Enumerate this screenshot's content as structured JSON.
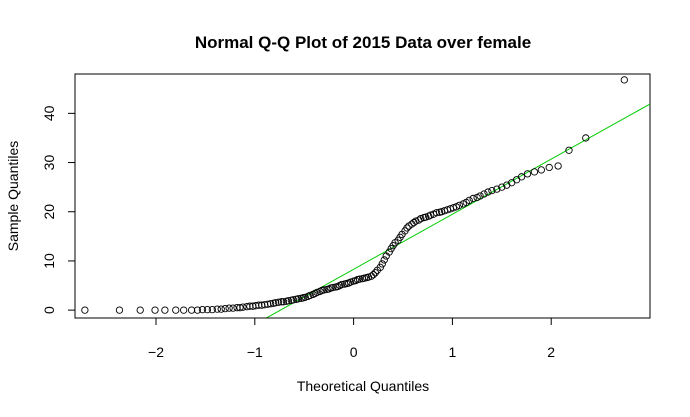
{
  "chart_data": {
    "type": "scatter",
    "title": "Normal Q-Q Plot of 2015 Data over female",
    "xlabel": "Theoretical Quantiles",
    "ylabel": "Sample Quantiles",
    "xlim": [
      -2.82,
      3.0
    ],
    "ylim": [
      -1.6,
      48.0
    ],
    "xticks": [
      -2,
      -1,
      0,
      1,
      2
    ],
    "yticks": [
      0,
      10,
      20,
      30,
      40
    ],
    "grid": false,
    "marker": "open-circle",
    "point_color": "#000000",
    "reference_line": {
      "color": "#00cc00",
      "intercept": 8.3,
      "slope": 11.2
    },
    "points": {
      "x": [
        -2.72,
        -2.37,
        -2.16,
        -2.01,
        -1.91,
        -1.8,
        -1.72,
        -1.64,
        -1.58,
        -1.53,
        -1.48,
        -1.43,
        -1.38,
        -1.34,
        -1.3,
        -1.26,
        -1.22,
        -1.18,
        -1.15,
        -1.12,
        -1.08,
        -1.05,
        -1.02,
        -0.99,
        -0.96,
        -0.93,
        -0.9,
        -0.87,
        -0.84,
        -0.81,
        -0.79,
        -0.76,
        -0.73,
        -0.71,
        -0.68,
        -0.66,
        -0.63,
        -0.61,
        -0.58,
        -0.56,
        -0.53,
        -0.51,
        -0.49,
        -0.46,
        -0.44,
        -0.41,
        -0.39,
        -0.37,
        -0.34,
        -0.32,
        -0.3,
        -0.27,
        -0.25,
        -0.23,
        -0.21,
        -0.18,
        -0.16,
        -0.14,
        -0.12,
        -0.09,
        -0.07,
        -0.05,
        -0.03,
        0.0,
        0.02,
        0.04,
        0.06,
        0.09,
        0.11,
        0.13,
        0.15,
        0.18,
        0.2,
        0.22,
        0.24,
        0.27,
        0.29,
        0.31,
        0.33,
        0.36,
        0.38,
        0.4,
        0.42,
        0.45,
        0.47,
        0.49,
        0.52,
        0.54,
        0.56,
        0.59,
        0.61,
        0.63,
        0.66,
        0.68,
        0.71,
        0.73,
        0.76,
        0.78,
        0.81,
        0.84,
        0.87,
        0.89,
        0.92,
        0.95,
        0.98,
        1.01,
        1.04,
        1.07,
        1.11,
        1.14,
        1.17,
        1.21,
        1.25,
        1.28,
        1.32,
        1.36,
        1.4,
        1.45,
        1.5,
        1.55,
        1.6,
        1.65,
        1.7,
        1.76,
        1.83,
        1.9,
        1.98,
        2.07,
        2.18,
        2.35,
        2.74
      ],
      "y": [
        0.0,
        0.0,
        0.0,
        0.0,
        0.0,
        0.0,
        0.0,
        0.0,
        0.0,
        0.1,
        0.1,
        0.1,
        0.2,
        0.2,
        0.3,
        0.4,
        0.4,
        0.5,
        0.5,
        0.6,
        0.7,
        0.8,
        0.8,
        0.9,
        1.0,
        1.0,
        1.1,
        1.2,
        1.3,
        1.4,
        1.5,
        1.6,
        1.7,
        1.7,
        1.8,
        1.9,
        2.0,
        2.1,
        2.2,
        2.3,
        2.4,
        2.5,
        2.6,
        2.8,
        3.0,
        3.2,
        3.4,
        3.6,
        3.8,
        4.0,
        4.1,
        4.2,
        4.3,
        4.5,
        4.6,
        4.7,
        4.8,
        5.0,
        5.2,
        5.3,
        5.4,
        5.5,
        5.7,
        5.9,
        6.0,
        6.2,
        6.3,
        6.4,
        6.5,
        6.6,
        6.7,
        6.9,
        7.2,
        7.6,
        8.1,
        8.7,
        9.4,
        10.2,
        11.0,
        11.8,
        12.5,
        13.1,
        13.7,
        14.2,
        14.8,
        15.4,
        16.1,
        16.7,
        17.1,
        17.5,
        17.8,
        18.1,
        18.3,
        18.6,
        18.8,
        18.9,
        19.1,
        19.3,
        19.5,
        19.8,
        19.9,
        20.0,
        20.2,
        20.4,
        20.6,
        20.8,
        21.0,
        21.3,
        21.6,
        21.9,
        22.3,
        22.7,
        22.9,
        23.2,
        23.6,
        24.0,
        24.3,
        24.6,
        25.0,
        25.4,
        25.9,
        26.5,
        27.1,
        27.7,
        28.1,
        28.5,
        29.0,
        29.3,
        32.5,
        35.0,
        46.8
      ]
    }
  }
}
